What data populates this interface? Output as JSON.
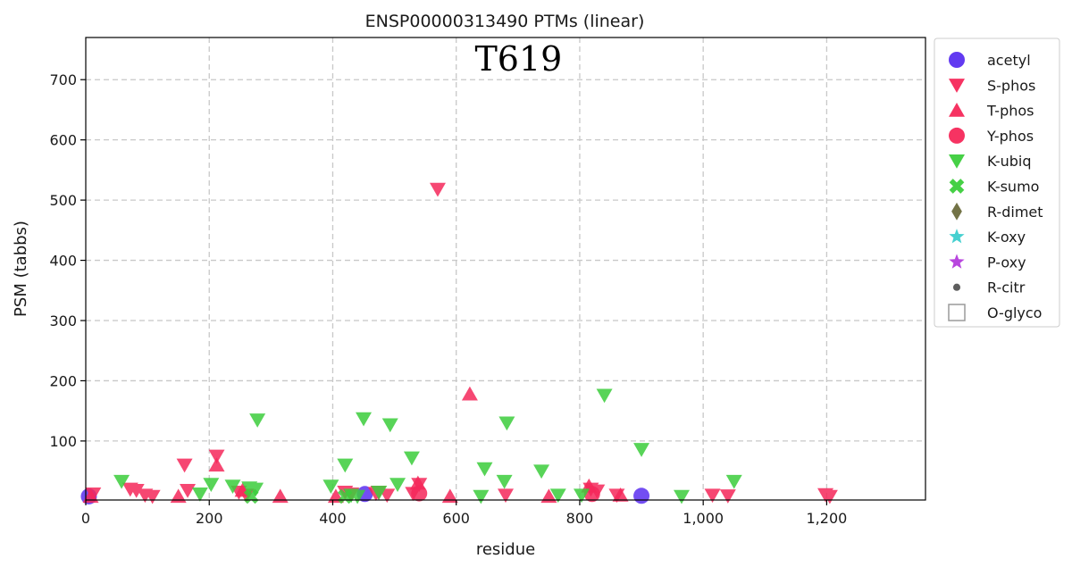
{
  "chart_data": {
    "type": "scatter",
    "title": "ENSP00000313490 PTMs (linear)",
    "xlabel": "residue",
    "ylabel": "PSM (tabbs)",
    "xlim": [
      0,
      1360
    ],
    "ylim": [
      2,
      770
    ],
    "xticks": [
      0,
      200,
      400,
      600,
      800,
      1000,
      1200
    ],
    "xtick_labels": [
      "0",
      "200",
      "400",
      "600",
      "800",
      "1,000",
      "1,200"
    ],
    "yticks": [
      100,
      200,
      300,
      400,
      500,
      600,
      700
    ],
    "ytick_labels": [
      "100",
      "200",
      "300",
      "400",
      "500",
      "600",
      "700"
    ],
    "grid": true,
    "legend_position": "outside-right",
    "annotations": [
      {
        "text": "T619",
        "x": 630,
        "y": 733
      }
    ],
    "series": [
      {
        "name": "acetyl",
        "marker": "circle",
        "color": "#5a2ff0",
        "points": [
          [
            5,
            8
          ],
          [
            452,
            12
          ],
          [
            900,
            9
          ]
        ]
      },
      {
        "name": "S-phos",
        "marker": "triangle-down",
        "color": "#f5285a",
        "points": [
          [
            12,
            12
          ],
          [
            72,
            20
          ],
          [
            82,
            18
          ],
          [
            96,
            10
          ],
          [
            108,
            8
          ],
          [
            160,
            60
          ],
          [
            165,
            18
          ],
          [
            212,
            75
          ],
          [
            248,
            15
          ],
          [
            260,
            10
          ],
          [
            420,
            15
          ],
          [
            430,
            12
          ],
          [
            470,
            13
          ],
          [
            474,
            15
          ],
          [
            488,
            10
          ],
          [
            530,
            13
          ],
          [
            540,
            28
          ],
          [
            570,
            518
          ],
          [
            680,
            10
          ],
          [
            818,
            20
          ],
          [
            828,
            17
          ],
          [
            860,
            10
          ],
          [
            1015,
            10
          ],
          [
            1040,
            9
          ],
          [
            1198,
            11
          ],
          [
            1205,
            8
          ]
        ]
      },
      {
        "name": "T-phos",
        "marker": "triangle-up",
        "color": "#f5285a",
        "points": [
          [
            8,
            8
          ],
          [
            150,
            8
          ],
          [
            212,
            60
          ],
          [
            254,
            18
          ],
          [
            315,
            8
          ],
          [
            405,
            8
          ],
          [
            538,
            30
          ],
          [
            590,
            8
          ],
          [
            622,
            178
          ],
          [
            750,
            8
          ],
          [
            815,
            25
          ],
          [
            866,
            10
          ]
        ]
      },
      {
        "name": "Y-phos",
        "marker": "circle",
        "color": "#f5285a",
        "points": [
          [
            540,
            13
          ],
          [
            820,
            12
          ]
        ]
      },
      {
        "name": "K-ubiq",
        "marker": "triangle-down",
        "color": "#3ccd3c",
        "points": [
          [
            58,
            33
          ],
          [
            185,
            12
          ],
          [
            203,
            28
          ],
          [
            238,
            25
          ],
          [
            265,
            22
          ],
          [
            275,
            20
          ],
          [
            278,
            135
          ],
          [
            397,
            25
          ],
          [
            420,
            60
          ],
          [
            430,
            10
          ],
          [
            440,
            8
          ],
          [
            450,
            137
          ],
          [
            475,
            15
          ],
          [
            493,
            127
          ],
          [
            505,
            28
          ],
          [
            528,
            72
          ],
          [
            640,
            8
          ],
          [
            646,
            54
          ],
          [
            678,
            33
          ],
          [
            682,
            130
          ],
          [
            738,
            50
          ],
          [
            765,
            10
          ],
          [
            803,
            10
          ],
          [
            840,
            176
          ],
          [
            900,
            86
          ],
          [
            965,
            8
          ],
          [
            1050,
            33
          ]
        ]
      },
      {
        "name": "K-sumo",
        "marker": "x",
        "color": "#3ccd3c",
        "points": [
          [
            268,
            8
          ],
          [
            420,
            8
          ]
        ]
      },
      {
        "name": "R-dimet",
        "marker": "diamond",
        "color": "#6b6b3c",
        "points": []
      },
      {
        "name": "K-oxy",
        "marker": "star",
        "color": "#3ccdcd",
        "points": []
      },
      {
        "name": "P-oxy",
        "marker": "star",
        "color": "#b43cdc",
        "points": []
      },
      {
        "name": "R-citr",
        "marker": "dot",
        "color": "#555555",
        "points": []
      },
      {
        "name": "O-glyco",
        "marker": "square-open",
        "color": "#9a9a9a",
        "points": []
      }
    ]
  }
}
